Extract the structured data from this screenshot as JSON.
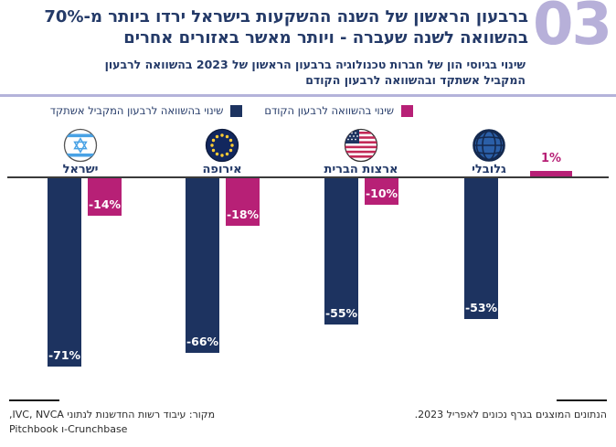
{
  "header": {
    "title_line1": "ברבעון הראשון של השנה ההשקעות בישראל ירדו ביותר מ-70%",
    "title_line2": "בהשוואה לשנה שעברה - ויותר מאשר באזורים אחרים",
    "section_number": "03"
  },
  "subtitle": {
    "line1": "שינוי בגיוסי הון של חברות טכנולוגיה ברבעון הראשון של 2023 בהשוואה לרבעון",
    "line2": "המקביל אשתקד ובהשוואה לרבעון הקודם"
  },
  "legend": [
    {
      "label": "שינוי בהשוואה לרבעון המקביל אשתקד",
      "color": "#1D3360"
    },
    {
      "label": "שינוי בהשוואה לרבעון הקודם",
      "color": "#B72076"
    }
  ],
  "chart_data": {
    "type": "bar",
    "categories": [
      "ישראל",
      "אירופה",
      "ארצות הברית",
      "גלובלי"
    ],
    "series": [
      {
        "name": "שינוי בהשוואה לרבעון המקביל אשתקד",
        "color": "#1D3360",
        "values": [
          -71,
          -66,
          -55,
          -53
        ],
        "labels": [
          "-71%",
          "-66%",
          "-55%",
          "-53%"
        ]
      },
      {
        "name": "שינוי בהשוואה לרבעון הקודם",
        "color": "#B72076",
        "values": [
          -14,
          -18,
          -10,
          1
        ],
        "labels": [
          "-14%",
          "-18%",
          "-10%",
          "1%"
        ]
      }
    ],
    "unit": "%",
    "xlabel": "",
    "ylabel": "",
    "ylim": [
      -80,
      5
    ],
    "grid": false,
    "legend_position": "top",
    "icons": [
      "israel-flag",
      "eu-flag",
      "us-flag",
      "globe"
    ]
  },
  "footer": {
    "source_line1": "מקור: עיבוד רשות החדשנות לנתוני IVC, NVCA,",
    "source_line2": "Crunchbase-ו Pitchbook",
    "right_note": "הנתונים המוצגים בגרף נכונים לאפריל 2023."
  },
  "colors": {
    "navy": "#1D3360",
    "magenta": "#B72076",
    "lavender": "#B7B0D9",
    "title_navy": "#243A68"
  }
}
